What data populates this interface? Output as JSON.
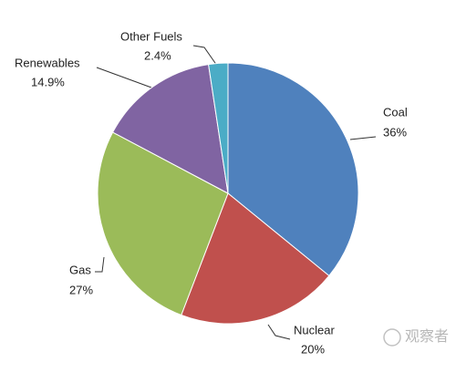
{
  "chart_data": {
    "type": "pie",
    "categories": [
      "Coal",
      "Nuclear",
      "Gas",
      "Renewables",
      "Other Fuels"
    ],
    "values": [
      36,
      20,
      27,
      14.9,
      2.4
    ],
    "value_labels": [
      "36%",
      "20%",
      "27%",
      "14.9%",
      "2.4%"
    ],
    "colors": [
      "#4f81bd",
      "#c0504d",
      "#9bbb59",
      "#8064a2",
      "#4bacc6"
    ]
  },
  "watermark": "观察者"
}
